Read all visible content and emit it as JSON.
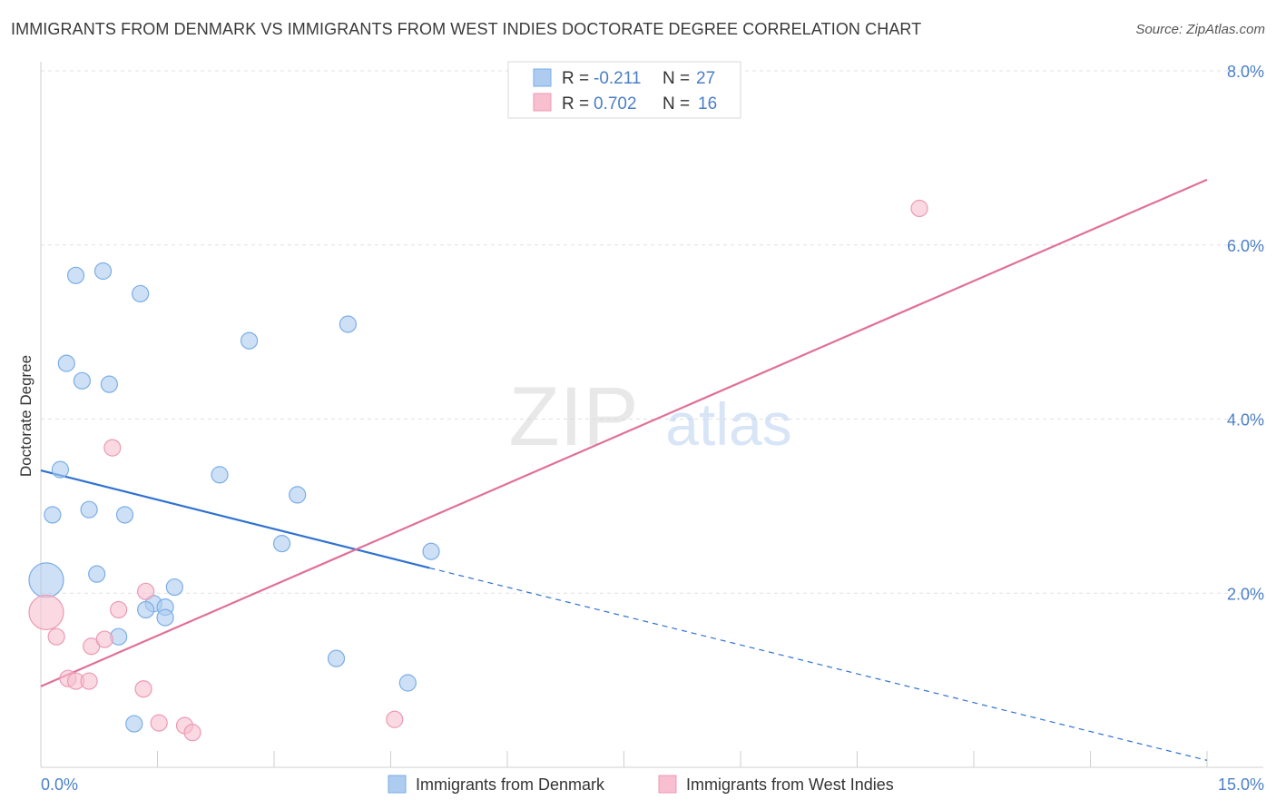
{
  "title": "IMMIGRANTS FROM DENMARK VS IMMIGRANTS FROM WEST INDIES DOCTORATE DEGREE CORRELATION CHART",
  "source": "Source: ZipAtlas.com",
  "watermark": {
    "zip": "ZIP",
    "atlas": "atlas"
  },
  "colors": {
    "denmark_fill": "#aecbf0",
    "denmark_stroke": "#7aaee6",
    "denmark_line": "#2f72d0",
    "westindies_fill": "#f7bfd0",
    "westindies_stroke": "#ec9ab4",
    "westindies_line": "#e07098",
    "axis_text": "#4a7fc8",
    "grid": "#e0e0e0"
  },
  "legend_stats": [
    {
      "r_label": "R =",
      "r_value": "-0.211",
      "n_label": "N =",
      "n_value": "27"
    },
    {
      "r_label": "R =",
      "r_value": "0.702",
      "n_label": "N =",
      "n_value": "16"
    }
  ],
  "chart_data": {
    "type": "scatter",
    "title": "IMMIGRANTS FROM DENMARK VS IMMIGRANTS FROM WEST INDIES DOCTORATE DEGREE CORRELATION CHART",
    "xlabel": "",
    "ylabel": "Doctorate Degree",
    "xlim": [
      0,
      15
    ],
    "ylim": [
      0,
      8
    ],
    "x_tick_labels": [
      "0.0%",
      "15.0%"
    ],
    "x_tick_values": [
      0,
      15
    ],
    "y_tick_labels": [
      "2.0%",
      "4.0%",
      "6.0%",
      "8.0%"
    ],
    "y_tick_values": [
      2,
      4,
      6,
      8
    ],
    "grid": true,
    "legend_position": "bottom-center",
    "series": [
      {
        "name": "Immigrants from Denmark",
        "points": [
          {
            "x": 0.07,
            "y": 2.15,
            "size": "large"
          },
          {
            "x": 0.45,
            "y": 5.65
          },
          {
            "x": 0.8,
            "y": 5.7
          },
          {
            "x": 1.28,
            "y": 5.44
          },
          {
            "x": 0.33,
            "y": 4.64
          },
          {
            "x": 0.53,
            "y": 4.44
          },
          {
            "x": 0.88,
            "y": 4.4
          },
          {
            "x": 2.68,
            "y": 4.9
          },
          {
            "x": 3.95,
            "y": 5.09
          },
          {
            "x": 0.25,
            "y": 3.42
          },
          {
            "x": 2.3,
            "y": 3.36
          },
          {
            "x": 3.3,
            "y": 3.13
          },
          {
            "x": 0.15,
            "y": 2.9
          },
          {
            "x": 0.62,
            "y": 2.96
          },
          {
            "x": 1.08,
            "y": 2.9
          },
          {
            "x": 3.1,
            "y": 2.57
          },
          {
            "x": 5.02,
            "y": 2.48
          },
          {
            "x": 0.72,
            "y": 2.22
          },
          {
            "x": 1.72,
            "y": 2.07
          },
          {
            "x": 1.45,
            "y": 1.88
          },
          {
            "x": 1.35,
            "y": 1.81
          },
          {
            "x": 1.6,
            "y": 1.84
          },
          {
            "x": 1.6,
            "y": 1.72
          },
          {
            "x": 1.0,
            "y": 1.5
          },
          {
            "x": 3.8,
            "y": 1.25
          },
          {
            "x": 4.72,
            "y": 0.97
          },
          {
            "x": 1.2,
            "y": 0.5
          }
        ],
        "trendline": {
          "x_start": 0,
          "y_start": 3.41,
          "x_solid_end": 5.0,
          "y_solid_end": 2.29,
          "x_dashed_end": 15,
          "y_dashed_end": 0.08
        }
      },
      {
        "name": "Immigrants from West Indies",
        "points": [
          {
            "x": 0.07,
            "y": 1.78,
            "size": "large"
          },
          {
            "x": 0.2,
            "y": 1.5
          },
          {
            "x": 0.35,
            "y": 1.02
          },
          {
            "x": 0.45,
            "y": 0.99
          },
          {
            "x": 0.62,
            "y": 0.99
          },
          {
            "x": 0.65,
            "y": 1.39
          },
          {
            "x": 0.82,
            "y": 1.47
          },
          {
            "x": 0.92,
            "y": 3.67
          },
          {
            "x": 1.0,
            "y": 1.81
          },
          {
            "x": 1.35,
            "y": 2.02
          },
          {
            "x": 1.32,
            "y": 0.9
          },
          {
            "x": 1.52,
            "y": 0.51
          },
          {
            "x": 1.85,
            "y": 0.48
          },
          {
            "x": 1.95,
            "y": 0.4
          },
          {
            "x": 4.55,
            "y": 0.55
          },
          {
            "x": 11.3,
            "y": 6.42
          }
        ],
        "trendline": {
          "x_start": 0,
          "y_start": 0.93,
          "x_end": 15,
          "y_end": 6.75
        }
      }
    ]
  }
}
